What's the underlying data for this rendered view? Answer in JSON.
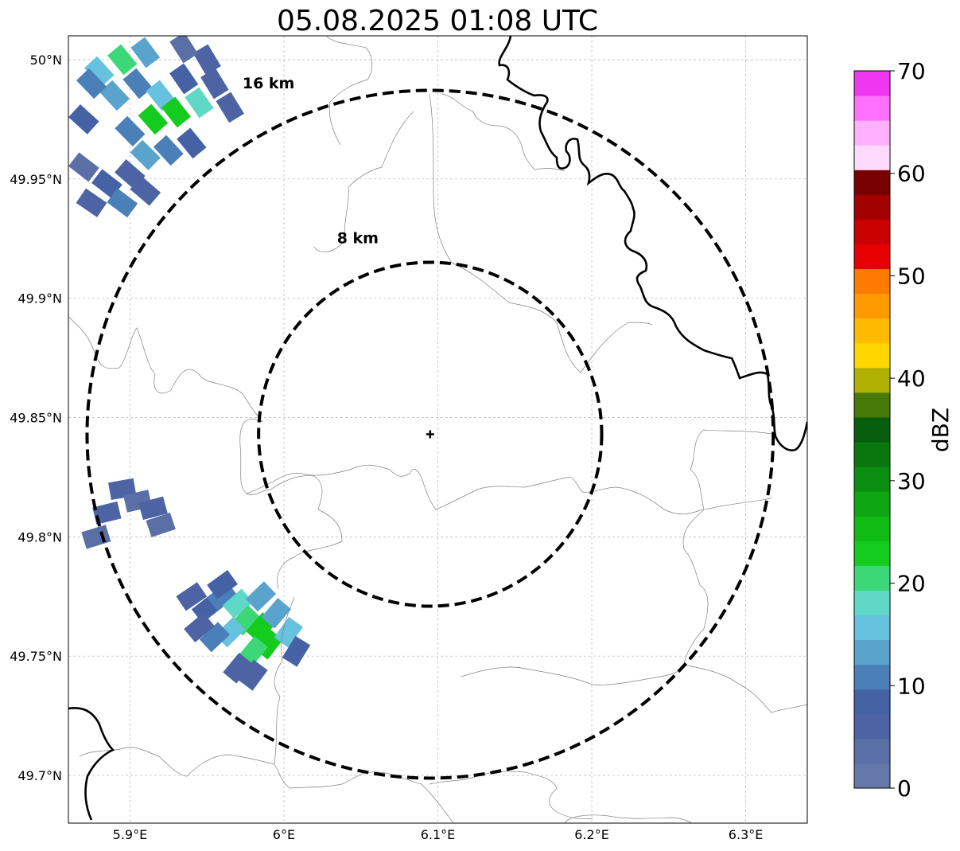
{
  "title": "05.08.2025 01:08 UTC",
  "map": {
    "lon_range": [
      5.86,
      6.34
    ],
    "lat_range": [
      49.68,
      50.01
    ],
    "x_ticks": [
      {
        "value": 5.9,
        "label": "5.9°E"
      },
      {
        "value": 6.0,
        "label": "6°E"
      },
      {
        "value": 6.1,
        "label": "6.1°E"
      },
      {
        "value": 6.2,
        "label": "6.2°E"
      },
      {
        "value": 6.3,
        "label": "6.3°E"
      }
    ],
    "y_ticks": [
      {
        "value": 50.0,
        "label": "50°N"
      },
      {
        "value": 49.95,
        "label": "49.95°N"
      },
      {
        "value": 49.9,
        "label": "49.9°N"
      },
      {
        "value": 49.85,
        "label": "49.85°N"
      },
      {
        "value": 49.8,
        "label": "49.8°N"
      },
      {
        "value": 49.75,
        "label": "49.75°N"
      },
      {
        "value": 49.7,
        "label": "49.7°N"
      }
    ],
    "grid": true,
    "radar_site": {
      "lon": 6.095,
      "lat": 49.843
    },
    "range_rings": [
      {
        "radius_km": 8,
        "label": "8 km",
        "label_lon": 6.048,
        "label_lat": 49.923
      },
      {
        "radius_km": 16,
        "label": "16 km",
        "label_lon": 5.99,
        "label_lat": 49.988
      }
    ],
    "echo_cells": [
      {
        "lon": 5.905,
        "lat": 49.99,
        "dbz": 12
      },
      {
        "lon": 5.92,
        "lat": 49.985,
        "dbz": 15
      },
      {
        "lon": 5.935,
        "lat": 49.992,
        "dbz": 8
      },
      {
        "lon": 5.915,
        "lat": 49.975,
        "dbz": 22
      },
      {
        "lon": 5.93,
        "lat": 49.978,
        "dbz": 24
      },
      {
        "lon": 5.945,
        "lat": 49.982,
        "dbz": 18
      },
      {
        "lon": 5.9,
        "lat": 49.97,
        "dbz": 10
      },
      {
        "lon": 5.89,
        "lat": 49.985,
        "dbz": 14
      },
      {
        "lon": 5.88,
        "lat": 49.995,
        "dbz": 16
      },
      {
        "lon": 5.895,
        "lat": 50.0,
        "dbz": 20
      },
      {
        "lon": 5.955,
        "lat": 49.99,
        "dbz": 6
      },
      {
        "lon": 5.965,
        "lat": 49.98,
        "dbz": 5
      },
      {
        "lon": 5.95,
        "lat": 50.0,
        "dbz": 7
      },
      {
        "lon": 5.94,
        "lat": 49.965,
        "dbz": 9
      },
      {
        "lon": 5.925,
        "lat": 49.962,
        "dbz": 11
      },
      {
        "lon": 5.91,
        "lat": 49.96,
        "dbz": 13
      },
      {
        "lon": 5.9,
        "lat": 49.952,
        "dbz": 6
      },
      {
        "lon": 5.885,
        "lat": 49.948,
        "dbz": 8
      },
      {
        "lon": 5.875,
        "lat": 49.94,
        "dbz": 5
      },
      {
        "lon": 5.895,
        "lat": 49.94,
        "dbz": 10
      },
      {
        "lon": 5.91,
        "lat": 49.945,
        "dbz": 7
      },
      {
        "lon": 5.87,
        "lat": 49.955,
        "dbz": 4
      },
      {
        "lon": 5.87,
        "lat": 49.975,
        "dbz": 9
      },
      {
        "lon": 5.875,
        "lat": 49.99,
        "dbz": 12
      },
      {
        "lon": 5.935,
        "lat": 50.005,
        "dbz": 3
      },
      {
        "lon": 5.91,
        "lat": 50.003,
        "dbz": 14
      },
      {
        "lon": 5.895,
        "lat": 49.82,
        "dbz": 5
      },
      {
        "lon": 5.905,
        "lat": 49.815,
        "dbz": 4
      },
      {
        "lon": 5.915,
        "lat": 49.812,
        "dbz": 6
      },
      {
        "lon": 5.92,
        "lat": 49.805,
        "dbz": 3
      },
      {
        "lon": 5.885,
        "lat": 49.81,
        "dbz": 5
      },
      {
        "lon": 5.878,
        "lat": 49.8,
        "dbz": 4
      },
      {
        "lon": 5.94,
        "lat": 49.775,
        "dbz": 5
      },
      {
        "lon": 5.95,
        "lat": 49.77,
        "dbz": 8
      },
      {
        "lon": 5.96,
        "lat": 49.775,
        "dbz": 12
      },
      {
        "lon": 5.97,
        "lat": 49.772,
        "dbz": 19
      },
      {
        "lon": 5.975,
        "lat": 49.765,
        "dbz": 20
      },
      {
        "lon": 5.985,
        "lat": 49.762,
        "dbz": 22
      },
      {
        "lon": 5.99,
        "lat": 49.755,
        "dbz": 24
      },
      {
        "lon": 5.98,
        "lat": 49.752,
        "dbz": 21
      },
      {
        "lon": 5.965,
        "lat": 49.76,
        "dbz": 15
      },
      {
        "lon": 5.955,
        "lat": 49.758,
        "dbz": 10
      },
      {
        "lon": 5.945,
        "lat": 49.762,
        "dbz": 6
      },
      {
        "lon": 5.995,
        "lat": 49.768,
        "dbz": 14
      },
      {
        "lon": 6.003,
        "lat": 49.76,
        "dbz": 16
      },
      {
        "lon": 6.008,
        "lat": 49.752,
        "dbz": 9
      },
      {
        "lon": 5.985,
        "lat": 49.775,
        "dbz": 13
      },
      {
        "lon": 5.97,
        "lat": 49.745,
        "dbz": 7
      },
      {
        "lon": 5.98,
        "lat": 49.742,
        "dbz": 5
      },
      {
        "lon": 5.96,
        "lat": 49.78,
        "dbz": 9
      }
    ],
    "coastline_color": "#000000",
    "border_color": "#808080"
  },
  "colorbar": {
    "label": "dBZ",
    "min": 0,
    "max": 70,
    "ticks": [
      0,
      10,
      20,
      30,
      40,
      50,
      60,
      70
    ],
    "colors": [
      "#6478aa",
      "#5a6fa6",
      "#4d63a3",
      "#4562a5",
      "#4a7fb8",
      "#5aa3cc",
      "#66c2de",
      "#60d8c8",
      "#3cd878",
      "#14cc1e",
      "#10bb14",
      "#0ea612",
      "#0b8f10",
      "#09760e",
      "#075e0c",
      "#487a0a",
      "#b0b002",
      "#ffd700",
      "#ffbb00",
      "#ff9a00",
      "#ff7a00",
      "#e60000",
      "#c80000",
      "#a30000",
      "#780000",
      "#ffdaff",
      "#ffb0ff",
      "#ff70ff",
      "#f036f0"
    ]
  }
}
